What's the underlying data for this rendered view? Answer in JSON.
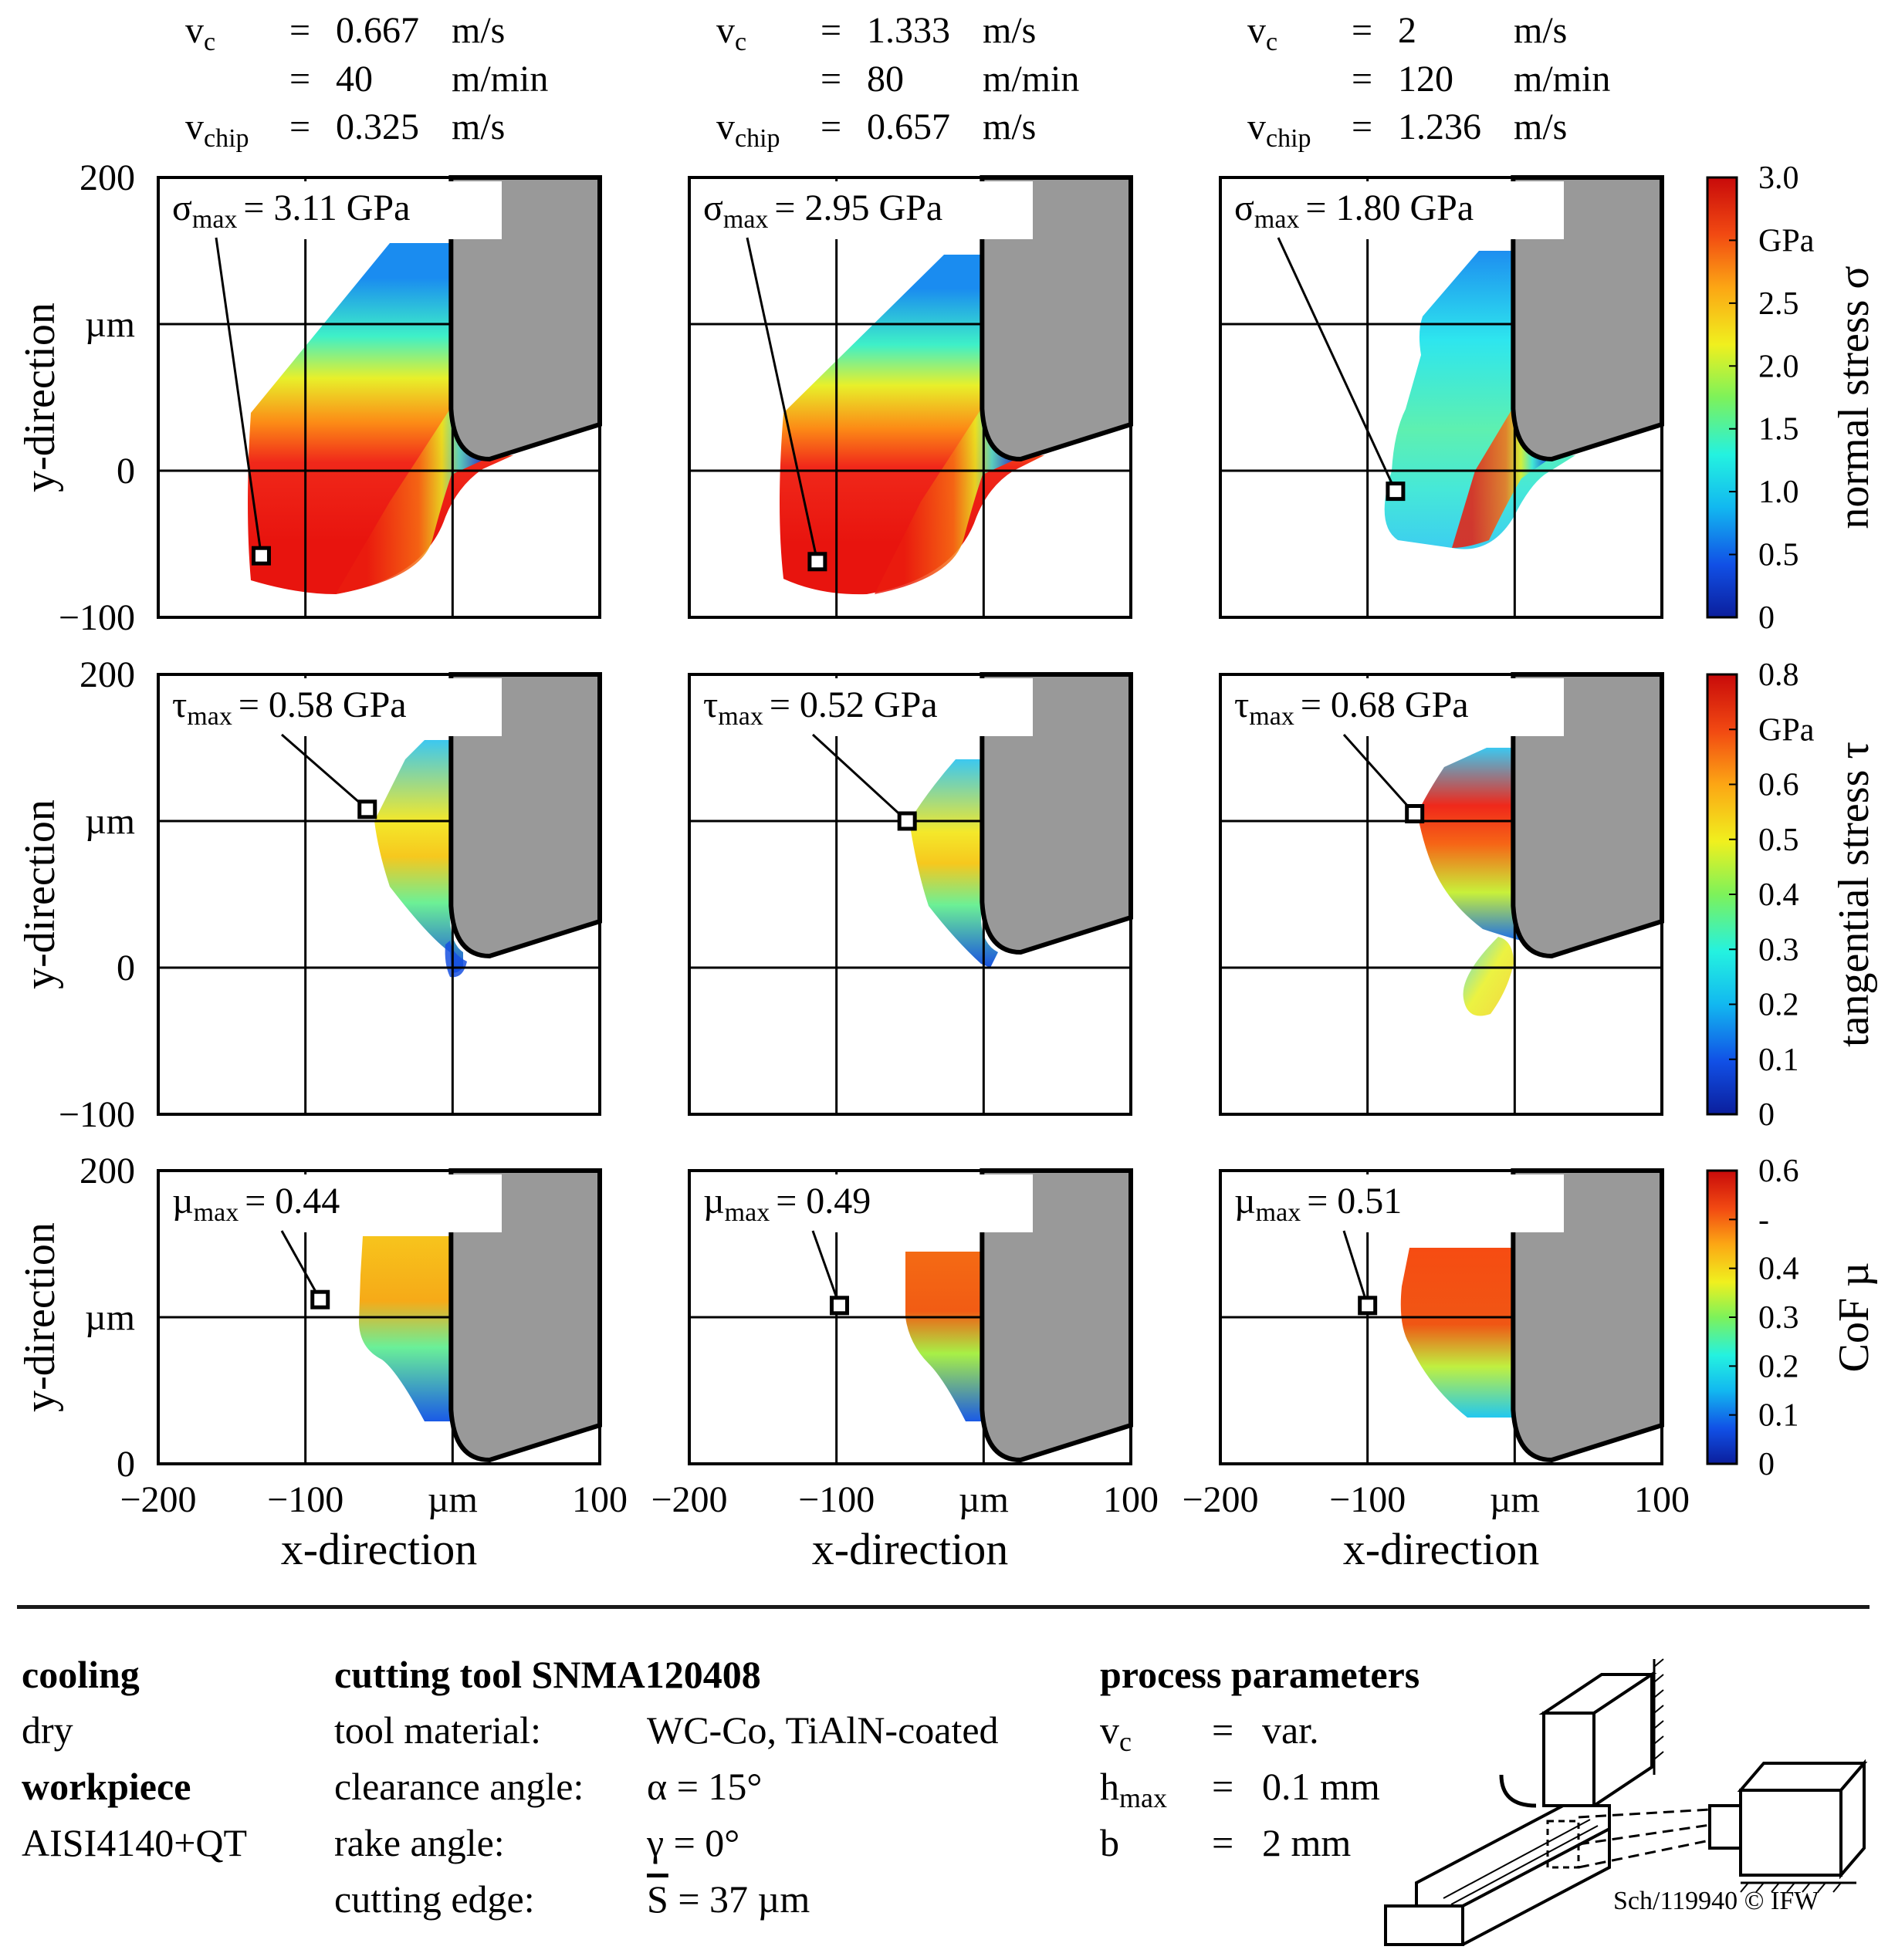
{
  "columns": [
    {
      "vc_label": "v",
      "vc_sub": "c",
      "vc_ms": "0.667",
      "vc_ms_unit": "m/s",
      "vc_mmin": "40",
      "vc_mmin_unit": "m/min",
      "vchip_label": "v",
      "vchip_sub": "chip",
      "vchip": "0.325",
      "vchip_unit": "m/s"
    },
    {
      "vc_label": "v",
      "vc_sub": "c",
      "vc_ms": "1.333",
      "vc_ms_unit": "m/s",
      "vc_mmin": "80",
      "vc_mmin_unit": "m/min",
      "vchip_label": "v",
      "vchip_sub": "chip",
      "vchip": "0.657",
      "vchip_unit": "m/s"
    },
    {
      "vc_label": "v",
      "vc_sub": "c",
      "vc_ms": "2",
      "vc_ms_unit": "m/s",
      "vc_mmin": "120",
      "vc_mmin_unit": "m/min",
      "vchip_label": "v",
      "vchip_sub": "chip",
      "vchip": "1.236",
      "vchip_unit": "m/s"
    }
  ],
  "chart_data": {
    "type": "heatmap",
    "x_axis": {
      "label": "x-direction",
      "ticks": [
        "−200",
        "−100",
        "µm",
        "100"
      ],
      "range": [
        -200,
        100
      ]
    },
    "rows": [
      {
        "quantity": "normal stress",
        "symbol": "σ",
        "y_ticks": [
          "200",
          "µm",
          "0",
          "−100"
        ],
        "ylim": [
          -100,
          200
        ],
        "ylabel": "y-direction",
        "colorbar": {
          "label": "normal stress σ",
          "ticks": [
            "3.0",
            "GPa",
            "2.5",
            "2.0",
            "1.5",
            "1.0",
            "0.5",
            "0"
          ],
          "range": [
            0,
            3.0
          ]
        },
        "panels": [
          {
            "label_sym": "σ",
            "label_sub": "max",
            "label_val": "= 3.11 GPa",
            "max": 3.11,
            "max_unit": "GPa",
            "marker": [
              -130,
              -58
            ]
          },
          {
            "label_sym": "σ",
            "label_sub": "max",
            "label_val": "= 2.95 GPa",
            "max": 2.95,
            "max_unit": "GPa",
            "marker": [
              -113,
              -62
            ]
          },
          {
            "label_sym": "σ",
            "label_sub": "max",
            "label_val": "= 1.80 GPa",
            "max": 1.8,
            "max_unit": "GPa",
            "marker": [
              -81,
              -14
            ]
          }
        ]
      },
      {
        "quantity": "tangential stress",
        "symbol": "τ",
        "y_ticks": [
          "200",
          "µm",
          "0",
          "−100"
        ],
        "ylim": [
          -100,
          200
        ],
        "ylabel": "y-direction",
        "colorbar": {
          "label": "tangential stress τ",
          "ticks": [
            "0.8",
            "GPa",
            "0.6",
            "0.5",
            "0.4",
            "0.3",
            "0.2",
            "0.1",
            "0"
          ],
          "range": [
            0,
            0.8
          ]
        },
        "panels": [
          {
            "label_sym": "τ",
            "label_sub": "max",
            "label_val": "= 0.58 GPa",
            "max": 0.58,
            "max_unit": "GPa",
            "marker": [
              -58,
              108
            ]
          },
          {
            "label_sym": "τ",
            "label_sub": "max",
            "label_val": "= 0.52 GPa",
            "max": 0.52,
            "max_unit": "GPa",
            "marker": [
              -52,
              100
            ]
          },
          {
            "label_sym": "τ",
            "label_sub": "max",
            "label_val": "= 0.68 GPa",
            "max": 0.68,
            "max_unit": "GPa",
            "marker": [
              -68,
              105
            ]
          }
        ]
      },
      {
        "quantity": "CoF",
        "symbol": "µ",
        "y_ticks": [
          "200",
          "µm",
          "0"
        ],
        "ylim": [
          0,
          200
        ],
        "ylabel": "y-direction",
        "colorbar": {
          "label": "CoF µ",
          "ticks": [
            "0.6",
            "-",
            "0.4",
            "0.3",
            "0.2",
            "0.1",
            "0"
          ],
          "range": [
            0,
            0.6
          ]
        },
        "panels": [
          {
            "label_sym": "µ",
            "label_sub": "max",
            "label_val": "= 0.44",
            "max": 0.44,
            "marker": [
              -90,
              112
            ]
          },
          {
            "label_sym": "µ",
            "label_sub": "max",
            "label_val": "= 0.49",
            "max": 0.49,
            "marker": [
              -98,
              108
            ]
          },
          {
            "label_sym": "µ",
            "label_sub": "max",
            "label_val": "= 0.51",
            "max": 0.51,
            "marker": [
              -100,
              108
            ]
          }
        ]
      }
    ]
  },
  "footer": {
    "cooling_title": "cooling",
    "cooling_value": "dry",
    "workpiece_title": "workpiece",
    "workpiece_value": "AISI4140+QT",
    "tool_title": "cutting tool SNMA120408",
    "tool_rows": [
      {
        "label": "tool material:",
        "value": "WC-Co, TiAlN-coated"
      },
      {
        "label": "clearance angle:",
        "value": "α  = 15°"
      },
      {
        "label": "rake angle:",
        "value": "γ  = 0°"
      },
      {
        "label": "cutting edge:",
        "sym": "S",
        "value": " = 37 µm"
      }
    ],
    "process_title": "process parameters",
    "process_rows": [
      {
        "sym": "v",
        "sub": "c",
        "eq": "=",
        "value": "var."
      },
      {
        "sym": "h",
        "sub": "max",
        "eq": "=",
        "value": "0.1 mm"
      },
      {
        "sym": "b",
        "sub": "",
        "eq": "=",
        "value": "2 mm"
      }
    ],
    "copyright": "Sch/119940 © IFW"
  },
  "colors": {
    "tool": "#999999",
    "frame": "#000000",
    "jet_low": "#0b1e9c",
    "jet_high": "#c80a0a"
  }
}
